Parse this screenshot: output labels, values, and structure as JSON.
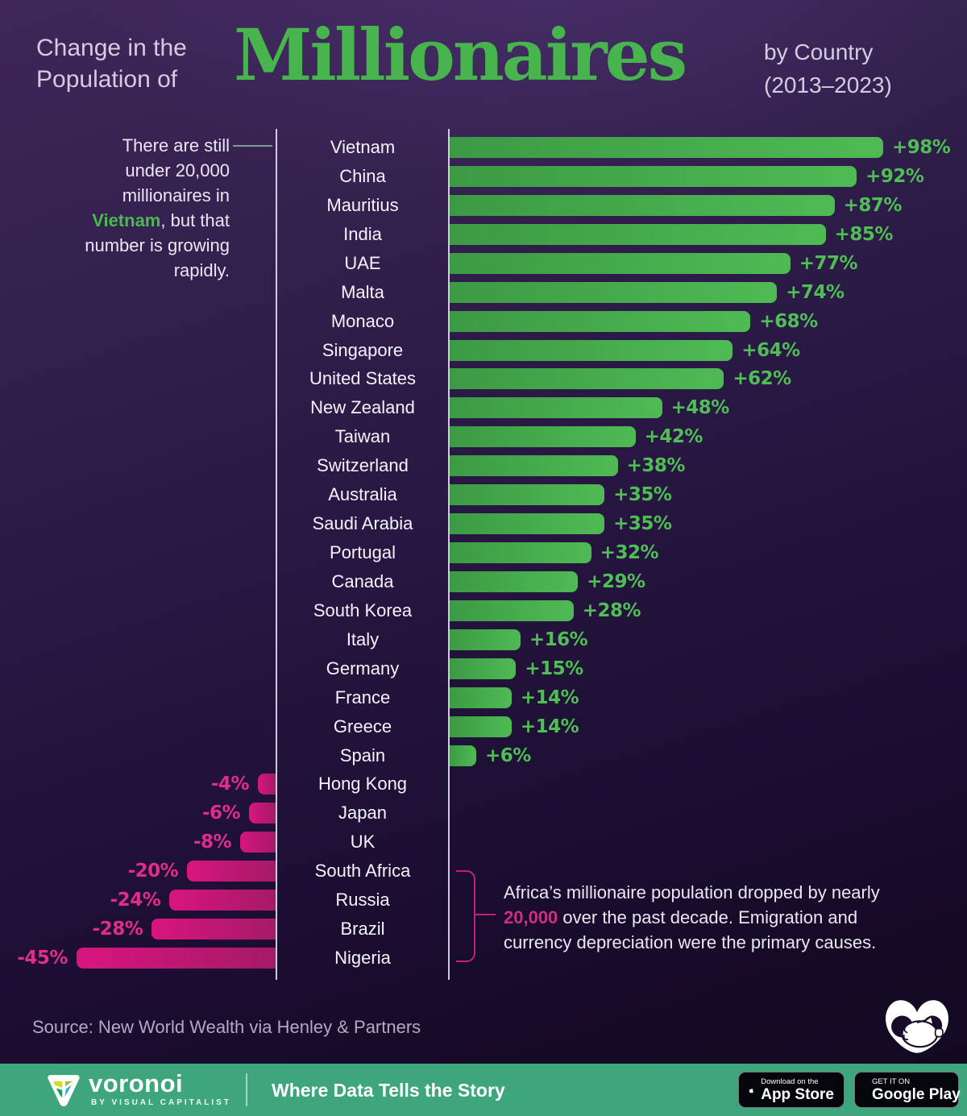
{
  "header": {
    "title_line1": "Change in the",
    "title_line2": "Population of",
    "title_main": "Millionaires",
    "subtitle_line1": "by Country",
    "subtitle_line2": "(2013–2023)"
  },
  "annotation_vietnam": {
    "pre": "There are still under 20,000 millionaires in ",
    "highlight": "Vietnam",
    "post": ", but that number is growing rapidly."
  },
  "annotation_africa": {
    "pre": "Africa’s millionaire population dropped by nearly ",
    "highlight": "20,000",
    "post": " over the past decade. Emigration and currency depreciation were the primary causes."
  },
  "chart_data": {
    "type": "bar",
    "orientation": "horizontal",
    "title": "Change in the Population of Millionaires by Country (2013–2023)",
    "value_unit": "%",
    "value_range": [
      -45,
      98
    ],
    "categories": [
      "Vietnam",
      "China",
      "Mauritius",
      "India",
      "UAE",
      "Malta",
      "Monaco",
      "Singapore",
      "United States",
      "New Zealand",
      "Taiwan",
      "Switzerland",
      "Australia",
      "Saudi Arabia",
      "Portugal",
      "Canada",
      "South Korea",
      "Italy",
      "Germany",
      "France",
      "Greece",
      "Spain",
      "Hong Kong",
      "Japan",
      "UK",
      "South Africa",
      "Russia",
      "Brazil",
      "Nigeria"
    ],
    "values": [
      98,
      92,
      87,
      85,
      77,
      74,
      68,
      64,
      62,
      48,
      42,
      38,
      35,
      35,
      32,
      29,
      28,
      16,
      15,
      14,
      14,
      6,
      -4,
      -6,
      -8,
      -20,
      -24,
      -28,
      -45
    ],
    "value_labels": [
      "+98%",
      "+92%",
      "+87%",
      "+85%",
      "+77%",
      "+74%",
      "+68%",
      "+64%",
      "+62%",
      "+48%",
      "+42%",
      "+38%",
      "+35%",
      "+35%",
      "+32%",
      "+29%",
      "+28%",
      "+16%",
      "+15%",
      "+14%",
      "+14%",
      "+6%",
      "-4%",
      "-6%",
      "-8%",
      "-20%",
      "-24%",
      "-28%",
      "-45%"
    ],
    "positive_color": "#4fba54",
    "negative_color": "#d8157f",
    "positive_label_color": "#4fbe54",
    "negative_label_color": "#e12c8a"
  },
  "source_text": "Source: New World Wealth via Henley & Partners",
  "footer": {
    "brand": "voronoi",
    "brand_subtitle": "BY VISUAL CAPITALIST",
    "tagline": "Where Data Tells the Story",
    "bar_color": "#3fa57c",
    "app_store_badge": {
      "line1": "Download on the",
      "line2": "App Store"
    },
    "google_play_badge": {
      "line1": "GET IT ON",
      "line2": "Google Play"
    }
  }
}
